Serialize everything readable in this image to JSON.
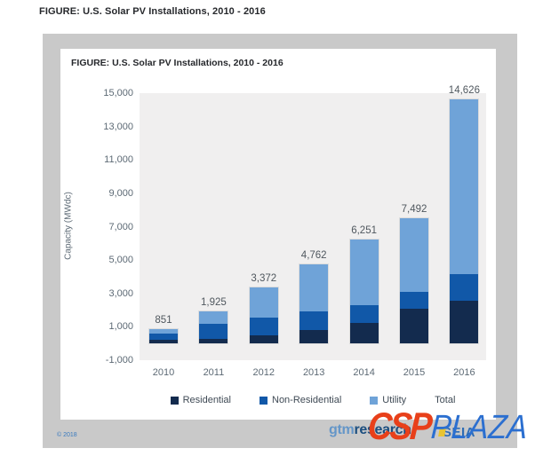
{
  "page_title": "FIGURE: U.S. Solar PV Installations, 2010 - 2016",
  "chart": {
    "title": "FIGURE: U.S. Solar PV Installations, 2010 - 2016",
    "y_axis_label": "Capacity (MWdc)"
  },
  "chart_data": {
    "type": "bar",
    "stacked": true,
    "title": "FIGURE: U.S. Solar PV Installations, 2010 - 2016",
    "xlabel": "",
    "ylabel": "Capacity (MWdc)",
    "categories": [
      "2010",
      "2011",
      "2012",
      "2013",
      "2014",
      "2015",
      "2016"
    ],
    "series": [
      {
        "name": "Residential",
        "color": "#132b4e",
        "values": [
          246,
          298,
          488,
          792,
          1231,
          2099,
          2583
        ]
      },
      {
        "name": "Non-Residential",
        "color": "#1158a8",
        "values": [
          336,
          869,
          1043,
          1112,
          1049,
          1011,
          1586
        ]
      },
      {
        "name": "Utility",
        "color": "#6fa3d8",
        "values": [
          269,
          758,
          1841,
          2858,
          3971,
          4382,
          10457
        ]
      }
    ],
    "totals": [
      851,
      1925,
      3372,
      4762,
      6251,
      7492,
      14626
    ],
    "total_labels": [
      "851",
      "1,925",
      "3,372",
      "4,762",
      "6,251",
      "7,492",
      "14,626"
    ],
    "ylim": [
      -1000,
      15000
    ],
    "ytick_labels": [
      "15,000",
      "13,000",
      "11,000",
      "9,000",
      "7,000",
      "5,000",
      "3,000",
      "1,000",
      "-1,000"
    ],
    "ytick_values": [
      15000,
      13000,
      11000,
      9000,
      7000,
      5000,
      3000,
      1000,
      -1000
    ],
    "legend": [
      "Residential",
      "Non-Residential",
      "Utility",
      "Total"
    ],
    "legend_position": "bottom",
    "grid": false
  },
  "footer": {
    "copyright": "© 2018",
    "gtm_logo_prefix": "gtm",
    "gtm_logo_suffix": "research",
    "seia_logo": "SEIA"
  },
  "watermark": {
    "csp": "CSP",
    "plaza": "PLAZA"
  },
  "colors": {
    "residential": "#132b4e",
    "non_residential": "#1158a8",
    "utility": "#6fa3d8",
    "plot_background": "#f0efef",
    "outer_box_gray": "#c9c9c9",
    "watermark_csp_orange": "#e8401a",
    "watermark_plaza_blue": "#2b6fd0",
    "gtm_blue": "#6496c8",
    "research_navy": "#1b4e7f",
    "seia_blue": "#2d6cb5",
    "copyright_blue": "#3a7bbf"
  }
}
